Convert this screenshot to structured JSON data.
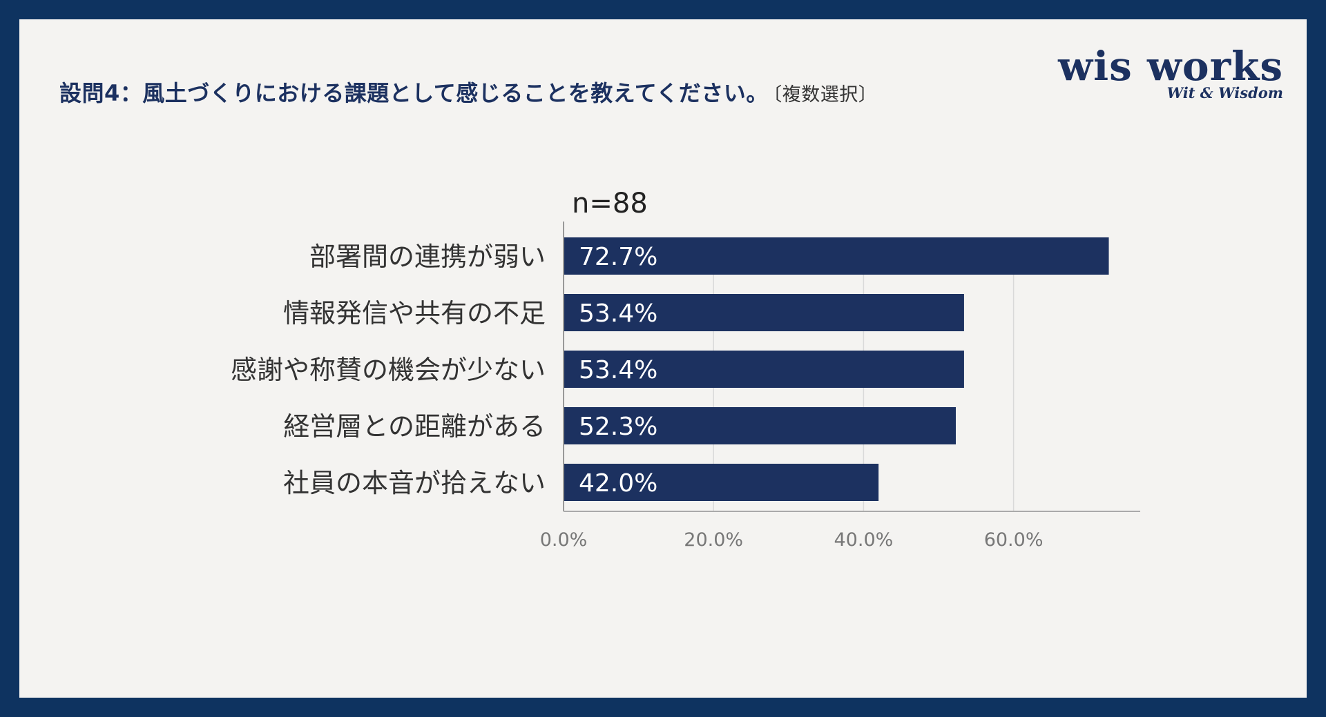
{
  "header": {
    "title": "設問4：風土づくりにおける課題として感じることを教えてください。",
    "subtitle": "〔複数選択〕"
  },
  "logo": {
    "name": "wis works",
    "tagline": "Wit & Wisdom"
  },
  "colors": {
    "frame": "#0e3360",
    "background": "#f4f3f1",
    "bar": "#1c3160",
    "title": "#1c3160"
  },
  "chart_data": {
    "type": "bar",
    "orientation": "horizontal",
    "annotation": "n=88",
    "categories": [
      "部署間の連携が弱い",
      "情報発信や共有の不足",
      "感謝や称賛の機会が少ない",
      "経営層との距離がある",
      "社員の本音が拾えない"
    ],
    "values": [
      72.7,
      53.4,
      53.4,
      52.3,
      42.0
    ],
    "value_labels": [
      "72.7%",
      "53.4%",
      "53.4%",
      "52.3%",
      "42.0%"
    ],
    "xticks": [
      0,
      20,
      40,
      60
    ],
    "xtick_labels": [
      "0.0%",
      "20.0%",
      "40.0%",
      "60.0%"
    ],
    "xlim": [
      0,
      77
    ],
    "grid": true,
    "legend": "none"
  }
}
